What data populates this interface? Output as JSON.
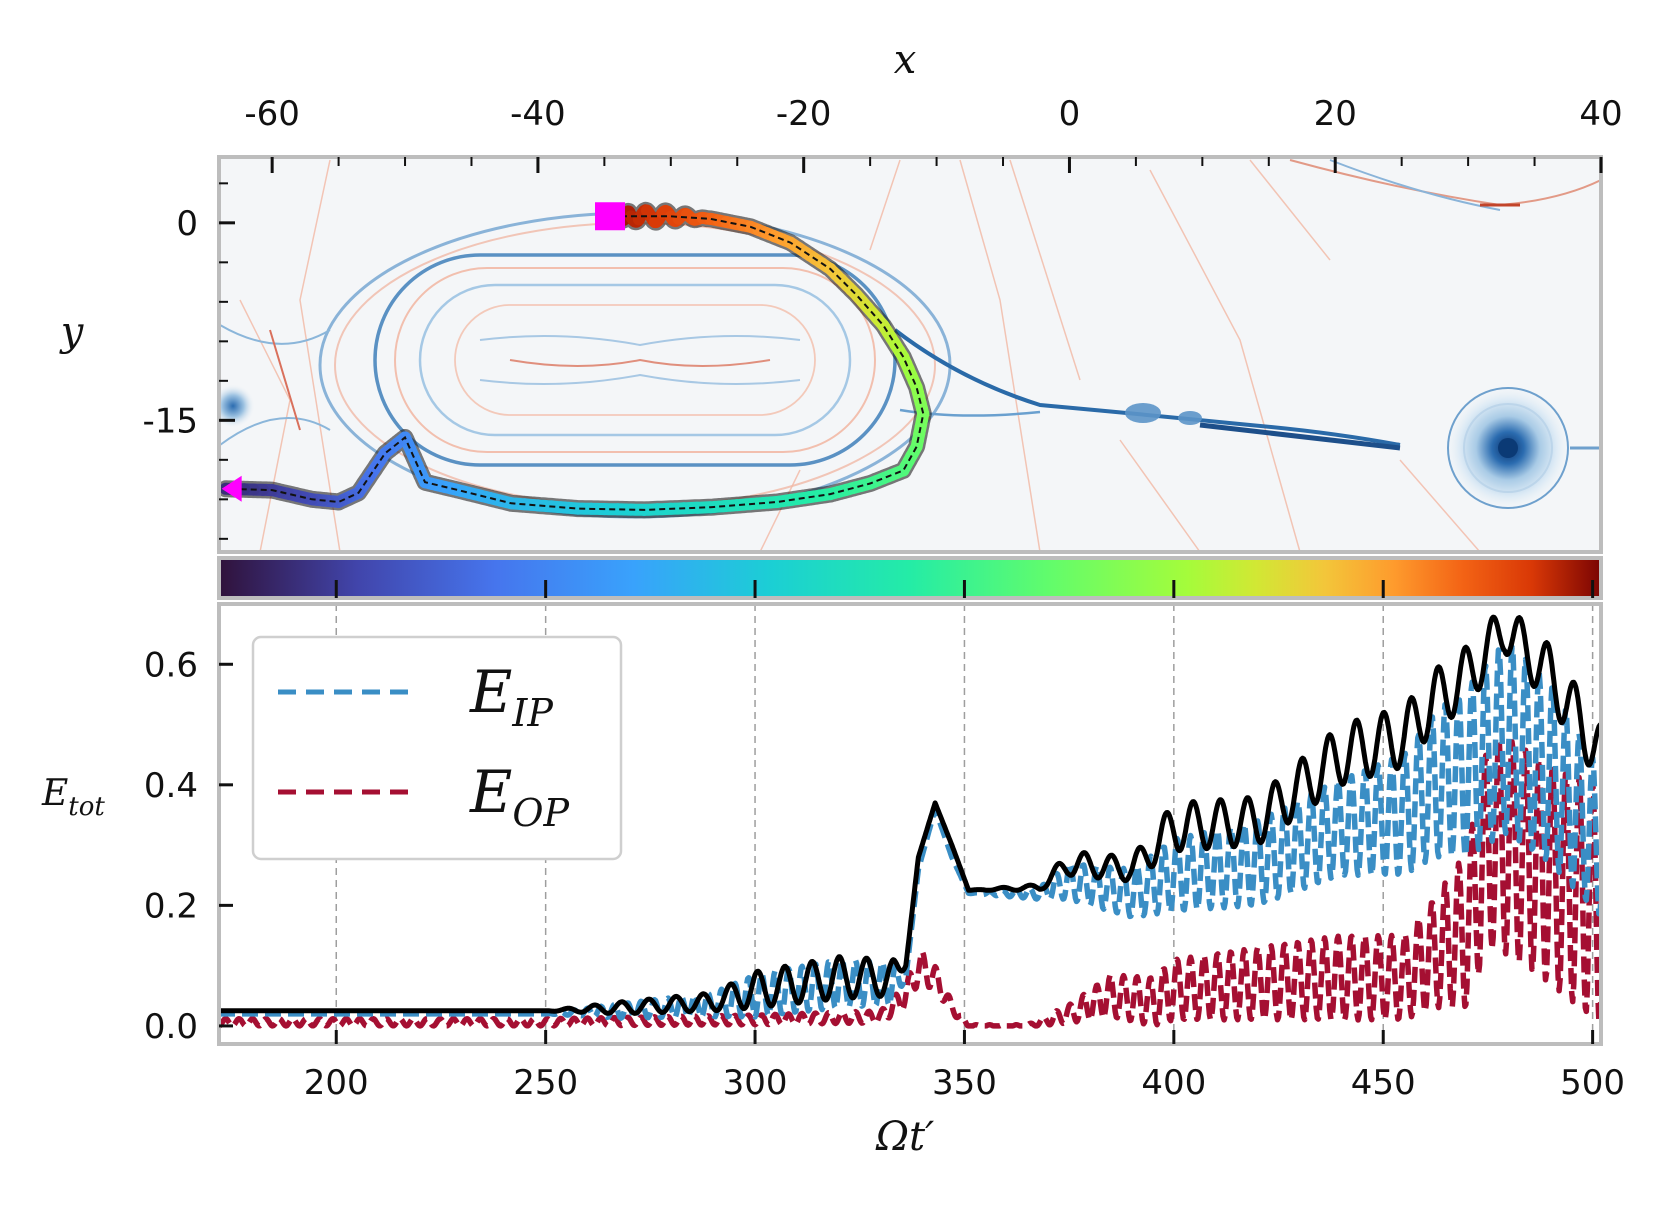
{
  "chart_data": [
    {
      "type": "heatmap",
      "xlabel": "x",
      "ylabel": "y",
      "x_axis_position": "top",
      "xlim": [
        -64,
        40
      ],
      "ylim": [
        -25,
        5
      ],
      "xticks": [
        -60,
        -40,
        -20,
        0,
        20,
        40
      ],
      "xtick_labels": [
        "-60",
        "-40",
        "-20",
        "0",
        "20",
        "40"
      ],
      "yticks": [
        0,
        -15
      ],
      "ytick_labels": [
        "0",
        "-15"
      ],
      "colormap": "RdBu_r",
      "colorbar": {
        "colormap": "turbo",
        "range": [
          170,
          500
        ],
        "tick_values": [
          200,
          250,
          300,
          350,
          400,
          450,
          500
        ]
      },
      "trajectory": {
        "start_marker": "magenta-square",
        "end_marker": "magenta-arrow",
        "color": "#ff00ff",
        "points": [
          [
            -34.5,
            0.5
          ],
          [
            -33,
            0.5
          ],
          [
            -30,
            0.5
          ],
          [
            -27,
            0.3
          ],
          [
            -24,
            -0.3
          ],
          [
            -21,
            -1.5
          ],
          [
            -18,
            -3.5
          ],
          [
            -16,
            -5.5
          ],
          [
            -14,
            -7.8
          ],
          [
            -12.5,
            -10.2
          ],
          [
            -11.5,
            -12.5
          ],
          [
            -11,
            -14.5
          ],
          [
            -11.5,
            -17
          ],
          [
            -12.5,
            -18.8
          ],
          [
            -15,
            -19.8
          ],
          [
            -18,
            -20.6
          ],
          [
            -22,
            -21.2
          ],
          [
            -27,
            -21.6
          ],
          [
            -32,
            -21.8
          ],
          [
            -37,
            -21.7
          ],
          [
            -42,
            -21.3
          ],
          [
            -46,
            -20.3
          ],
          [
            -48.5,
            -19.7
          ],
          [
            -50,
            -16.3
          ],
          [
            -51.5,
            -17.5
          ],
          [
            -53.5,
            -20.5
          ],
          [
            -55,
            -21.2
          ],
          [
            -57,
            -21
          ],
          [
            -60,
            -20.3
          ],
          [
            -63.5,
            -20.2
          ]
        ]
      }
    },
    {
      "type": "line",
      "xlabel": "Ωt′",
      "ylabel_main": "E",
      "ylabel_sub": "tot",
      "xlim": [
        172,
        502
      ],
      "ylim": [
        -0.03,
        0.7
      ],
      "xticks": [
        200,
        250,
        300,
        350,
        400,
        450,
        500
      ],
      "xtick_labels": [
        "200",
        "250",
        "300",
        "350",
        "400",
        "450",
        "500"
      ],
      "yticks": [
        0.0,
        0.2,
        0.4,
        0.6
      ],
      "ytick_labels": [
        "0.0",
        "0.2",
        "0.4",
        "0.6"
      ],
      "grid": "vertical-dashed-at-xticks",
      "legend": {
        "position": "top-left",
        "entries": [
          {
            "main": "E",
            "sub": "IP",
            "color": "#3a8ec5",
            "style": "dashed"
          },
          {
            "main": "E",
            "sub": "OP",
            "color": "#a50f32",
            "style": "dashed"
          }
        ]
      },
      "series": [
        {
          "id": "tot",
          "color": "#000000",
          "style": "solid",
          "envelope_x": [
            172,
            250,
            268,
            290,
            300,
            320,
            333,
            336,
            339,
            343,
            347,
            351,
            368,
            375,
            390,
            400,
            420,
            440,
            455,
            462,
            470,
            479,
            490,
            502
          ],
          "envelope_y": [
            0.025,
            0.025,
            0.03,
            0.04,
            0.06,
            0.08,
            0.08,
            0.1,
            0.28,
            0.37,
            0.3,
            0.225,
            0.23,
            0.27,
            0.26,
            0.33,
            0.34,
            0.45,
            0.48,
            0.54,
            0.58,
            0.66,
            0.58,
            0.45
          ],
          "osc_amp": [
            0.0,
            0.0,
            0.01,
            0.015,
            0.03,
            0.035,
            0.03,
            0.0,
            0.0,
            0.0,
            0.0,
            0.0,
            0.005,
            0.02,
            0.02,
            0.04,
            0.04,
            0.05,
            0.05,
            0.05,
            0.05,
            0.04,
            0.05,
            0.05
          ],
          "osc_period": 6.5
        },
        {
          "id": "ip",
          "color": "#3a8ec5",
          "style": "dashed",
          "envelope_x": [
            172,
            250,
            268,
            290,
            300,
            320,
            333,
            336,
            339,
            343,
            347,
            351,
            368,
            375,
            390,
            400,
            420,
            440,
            455,
            462,
            470,
            479,
            490,
            502
          ],
          "envelope_y": [
            0.02,
            0.02,
            0.025,
            0.035,
            0.05,
            0.07,
            0.07,
            0.08,
            0.26,
            0.36,
            0.28,
            0.22,
            0.22,
            0.24,
            0.22,
            0.25,
            0.27,
            0.33,
            0.35,
            0.4,
            0.42,
            0.48,
            0.42,
            0.3
          ],
          "osc_amp": [
            0.0,
            0.0,
            0.012,
            0.02,
            0.035,
            0.04,
            0.035,
            0.0,
            0.0,
            0.0,
            0.0,
            0.0,
            0.01,
            0.03,
            0.04,
            0.06,
            0.07,
            0.08,
            0.1,
            0.12,
            0.14,
            0.16,
            0.15,
            0.12
          ],
          "osc_period": 3.2
        },
        {
          "id": "op",
          "color": "#a50f32",
          "style": "dashed",
          "envelope_x": [
            172,
            250,
            300,
            330,
            336,
            339,
            343,
            347,
            351,
            365,
            375,
            385,
            395,
            400,
            420,
            440,
            455,
            462,
            470,
            475,
            479,
            490,
            502
          ],
          "envelope_y": [
            0.006,
            0.006,
            0.01,
            0.015,
            0.05,
            0.1,
            0.08,
            0.03,
            0.0,
            0.0,
            0.02,
            0.05,
            0.04,
            0.06,
            0.07,
            0.08,
            0.08,
            0.12,
            0.16,
            0.3,
            0.3,
            0.25,
            0.2
          ],
          "osc_amp": [
            0.006,
            0.006,
            0.008,
            0.01,
            0.02,
            0.03,
            0.02,
            0.01,
            0.002,
            0.002,
            0.015,
            0.035,
            0.04,
            0.05,
            0.06,
            0.07,
            0.07,
            0.09,
            0.13,
            0.17,
            0.18,
            0.18,
            0.2
          ],
          "osc_period": 3.2
        }
      ]
    }
  ]
}
